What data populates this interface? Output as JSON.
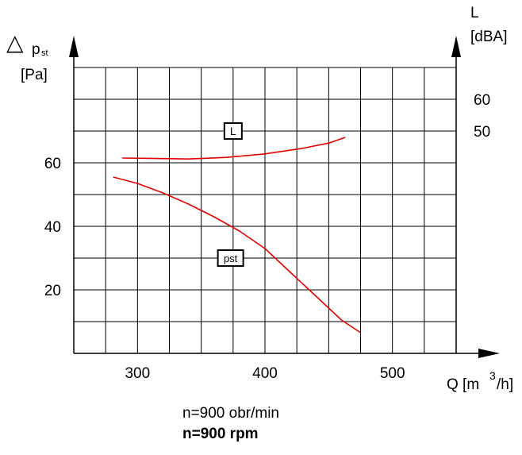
{
  "chart_data": {
    "type": "line",
    "x_axis": {
      "label_main": "Q [m",
      "label_sup": "3",
      "label_end": "/h]",
      "ticks": [
        300,
        400,
        500
      ],
      "range": [
        250,
        550
      ],
      "gridline_step": 25
    },
    "y_axis_left": {
      "label_symbol": "△",
      "label_main": "p",
      "label_sub": "st",
      "unit": "[Pa]",
      "ticks": [
        20,
        40,
        60
      ],
      "range": [
        0,
        90
      ],
      "gridline_step": 10
    },
    "y_axis_right": {
      "label": "L",
      "unit": "[dBA]",
      "ticks": [
        {
          "label": "60",
          "left_equiv": 80
        },
        {
          "label": "50",
          "left_equiv": 70
        }
      ]
    },
    "grid": true,
    "series": [
      {
        "name": "L",
        "color": "#e00000",
        "axis": "right",
        "x": [
          288,
          310,
          340,
          370,
          400,
          430,
          450,
          463
        ],
        "y": [
          61.5,
          61.4,
          61.2,
          61.7,
          62.8,
          64.6,
          66.2,
          68.0
        ]
      },
      {
        "name": "pst",
        "color": "#e00000",
        "axis": "left",
        "x": [
          281,
          300,
          320,
          340,
          360,
          380,
          400,
          420,
          440,
          460,
          475
        ],
        "y": [
          55.5,
          53.5,
          50.5,
          47.0,
          43.0,
          38.5,
          33.0,
          25.5,
          18.0,
          10.5,
          6.5
        ]
      }
    ],
    "annotations": [
      {
        "text": "L",
        "x": 375,
        "y": 70
      },
      {
        "text": "pst",
        "x": 373,
        "y": 30
      }
    ]
  },
  "notes": {
    "line1": "n=900 obr/min",
    "line2": "n=900 rpm"
  }
}
